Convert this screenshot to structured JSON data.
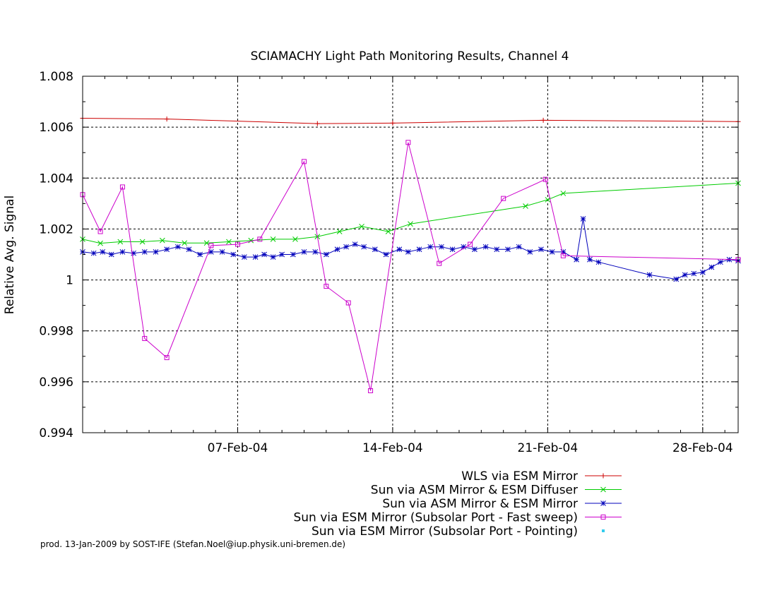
{
  "chart_data": {
    "type": "line",
    "title": "SCIAMACHY Light Path Monitoring Results, Channel 4",
    "xlabel": "",
    "ylabel": "Relative Avg. Signal",
    "xlim": [
      0.0,
      29.6
    ],
    "ylim": [
      0.994,
      1.008
    ],
    "yticks": [
      0.994,
      0.996,
      0.998,
      1,
      1.002,
      1.004,
      1.006,
      1.008
    ],
    "ytick_labels": [
      "0.994",
      "0.996",
      "0.998",
      "1",
      "1.002",
      "1.004",
      "1.006",
      "1.008"
    ],
    "xticks": [
      7,
      14,
      21,
      28
    ],
    "xtick_labels": [
      "07-Feb-04",
      "14-Feb-04",
      "21-Feb-04",
      "28-Feb-04"
    ],
    "grid": "dashed at major x and y ticks",
    "legend_position": "below plot, right-aligned",
    "credit": "prod. 13-Jan-2009 by SOST-IFE (Stefan.Noel@iup.physik.uni-bremen.de)",
    "series": [
      {
        "name": "WLS via ESM Mirror",
        "color": "#cc0000",
        "marker": "plus",
        "x": [
          0,
          3.8,
          10.6,
          14.0,
          20.8,
          29.6
        ],
        "y": [
          1.00635,
          1.00632,
          1.00614,
          1.00616,
          1.00627,
          1.00622
        ]
      },
      {
        "name": "Sun via ASM Mirror & ESM Diffuser",
        "color": "#00cc00",
        "marker": "cross",
        "x": [
          0,
          0.8,
          1.7,
          2.7,
          3.6,
          4.6,
          5.6,
          6.6,
          7.6,
          8.6,
          9.6,
          10.6,
          11.6,
          12.6,
          13.8,
          14.8,
          20.0,
          21.0,
          21.7,
          29.6
        ],
        "y": [
          1.0016,
          1.00144,
          1.0015,
          1.0015,
          1.00155,
          1.00145,
          1.00145,
          1.0015,
          1.00155,
          1.0016,
          1.0016,
          1.0017,
          1.0019,
          1.0021,
          1.0019,
          1.0022,
          1.0029,
          1.00315,
          1.0034,
          1.0038
        ]
      },
      {
        "name": "Sun via ASM Mirror & ESM Mirror",
        "color": "#0000bb",
        "marker": "star",
        "x": [
          0.0,
          0.5,
          0.9,
          1.3,
          1.8,
          2.3,
          2.8,
          3.3,
          3.8,
          4.3,
          4.8,
          5.3,
          5.8,
          6.3,
          6.8,
          7.3,
          7.8,
          8.2,
          8.6,
          9.0,
          9.5,
          10.0,
          10.5,
          11.0,
          11.5,
          11.9,
          12.3,
          12.7,
          13.2,
          13.7,
          14.3,
          14.7,
          15.2,
          15.7,
          16.2,
          16.7,
          17.2,
          17.7,
          18.2,
          18.7,
          19.2,
          19.7,
          20.2,
          20.7,
          21.2,
          21.7,
          22.3,
          22.6,
          22.9,
          23.3,
          25.6,
          26.8,
          27.2,
          27.6,
          28.0,
          28.4,
          28.8,
          29.2,
          29.6
        ],
        "y": [
          1.0011,
          1.00105,
          1.0011,
          1.001,
          1.0011,
          1.00105,
          1.0011,
          1.0011,
          1.0012,
          1.0013,
          1.0012,
          1.001,
          1.0011,
          1.0011,
          1.001,
          1.0009,
          1.0009,
          1.001,
          1.0009,
          1.001,
          1.001,
          1.0011,
          1.0011,
          1.001,
          1.0012,
          1.0013,
          1.0014,
          1.0013,
          1.0012,
          1.001,
          1.0012,
          1.0011,
          1.0012,
          1.0013,
          1.0013,
          1.0012,
          1.0013,
          1.0012,
          1.0013,
          1.0012,
          1.0012,
          1.0013,
          1.0011,
          1.0012,
          1.0011,
          1.0011,
          1.0008,
          1.0024,
          1.0008,
          1.0007,
          1.0002,
          1.00003,
          1.0002,
          1.00025,
          1.0003,
          1.0005,
          1.0007,
          1.0008,
          1.00075
        ]
      },
      {
        "name": "Sun via ESM Mirror (Subsolar Port - Fast sweep)",
        "color": "#cc00cc",
        "marker": "square",
        "x": [
          0.0,
          0.8,
          1.8,
          2.8,
          3.8,
          5.8,
          7.0,
          8.0,
          10.0,
          11.0,
          12.0,
          13.0,
          14.7,
          16.1,
          17.5,
          19.0,
          20.9,
          21.7,
          29.6
        ],
        "y": [
          1.00335,
          1.0019,
          1.00365,
          0.9977,
          0.99695,
          1.00135,
          1.0014,
          1.0016,
          1.00465,
          0.99975,
          0.9991,
          0.99565,
          1.0054,
          1.00065,
          1.0014,
          1.0032,
          1.00395,
          1.00095,
          1.0008
        ]
      },
      {
        "name": "Sun via ESM Mirror (Subsolar Port - Pointing)",
        "color": "#33ccee",
        "marker": "dot",
        "x": [],
        "y": []
      }
    ]
  }
}
